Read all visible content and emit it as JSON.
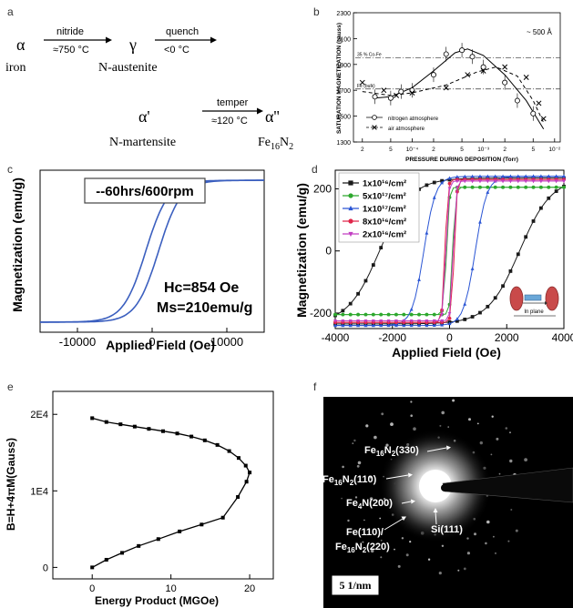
{
  "panels": {
    "a": {
      "label": "a",
      "alpha_iron": "α",
      "iron": "iron",
      "step1_top": "nitride",
      "step1_bottom": "≈750 °C",
      "gamma": "γ",
      "n_austenite": "N-austenite",
      "step2_top": "quench",
      "step2_bottom": "<0 °C",
      "alpha_prime": "α'",
      "n_martensite": "N-martensite",
      "step3_top": "temper",
      "step3_bottom": "≈120 °C",
      "alpha_dprime": "α''",
      "fe16n2": "Fe16N2"
    },
    "b": {
      "label": "b",
      "note": "~ 500 Å",
      "ref35": "35 % Co-Fe",
      "refbulk": "Fe (bulk)",
      "legend": [
        "nitrogen atmosphere",
        "air atmosphere"
      ]
    },
    "c": {
      "label": "c",
      "box_text": "--60hrs/600rpm",
      "hc": "Hc=854 Oe",
      "ms": "Ms=210emu/g"
    },
    "d": {
      "label": "d",
      "inset_text": "In plane"
    },
    "e": {
      "label": "e"
    },
    "f": {
      "label": "f",
      "labels": [
        "Fe16N2(330)",
        "Fe16N2(110)",
        "Fe4N(200)",
        "Si(111)",
        "Fe(110)/",
        "Fe16N2(220)"
      ],
      "scale": "5 1/nm"
    }
  },
  "chart_data": [
    {
      "id": "b",
      "type": "line",
      "xlabel": "PRESSURE DURING DEPOSITION (Torr)",
      "ylabel": "SATURATION MAGNETIZATION (gauss)",
      "xscale": "log",
      "xlim": [
        1.5e-05,
        0.012
      ],
      "ylim": [
        1300,
        2300
      ],
      "yticks": [
        1300,
        1500,
        1700,
        1900,
        2100,
        2300
      ],
      "xtick_labels": [
        "2",
        "5",
        "10⁻⁴",
        "2",
        "5",
        "10⁻³",
        "2",
        "5",
        "10⁻²"
      ],
      "xtick_values": [
        2e-05,
        5e-05,
        0.0001,
        0.0002,
        0.0005,
        0.001,
        0.002,
        0.005,
        0.01
      ],
      "ref_lines": [
        {
          "name": "35 % Co-Fe",
          "y": 1950,
          "style": "dash-dot"
        },
        {
          "name": "Fe (bulk)",
          "y": 1710,
          "style": "dash-dot"
        }
      ],
      "series": [
        {
          "name": "nitrogen atmosphere",
          "marker": "circle",
          "x": [
            3e-05,
            5e-05,
            7e-05,
            0.0001,
            0.0002,
            0.0003,
            0.0005,
            0.0007,
            0.001,
            0.002,
            0.003,
            0.005
          ],
          "y": [
            1650,
            1640,
            1690,
            1700,
            1820,
            1980,
            2010,
            1960,
            1880,
            1760,
            1620,
            1520
          ],
          "fit_x": [
            3e-05,
            5e-05,
            0.0001,
            0.0002,
            0.0004,
            0.0006,
            0.001,
            0.002,
            0.004,
            0.007
          ],
          "fit_y": [
            1640,
            1650,
            1720,
            1850,
            1990,
            2020,
            1970,
            1820,
            1620,
            1400
          ]
        },
        {
          "name": "air atmosphere",
          "marker": "x",
          "x": [
            2e-05,
            4e-05,
            6e-05,
            0.0001,
            0.0003,
            0.0006,
            0.001,
            0.002,
            0.004,
            0.006,
            0.007
          ],
          "y": [
            1760,
            1700,
            1660,
            1680,
            1720,
            1820,
            1850,
            1880,
            1800,
            1600,
            1480
          ],
          "fit_x": [
            2e-05,
            5e-05,
            0.0001,
            0.0003,
            0.0008,
            0.0015,
            0.003,
            0.005,
            0.007
          ],
          "fit_y": [
            1690,
            1660,
            1680,
            1740,
            1840,
            1880,
            1810,
            1620,
            1450
          ]
        }
      ]
    },
    {
      "id": "c",
      "type": "line",
      "xlabel": "Applied Field (Oe)",
      "ylabel": "Magnetization (emu/g)",
      "xlim": [
        -15000,
        15000
      ],
      "ylim": [
        -240,
        240
      ],
      "xticks": [
        -10000,
        0,
        10000
      ],
      "hc": 854,
      "ms": 210
    },
    {
      "id": "d",
      "type": "line",
      "xlabel": "Applied Field (Oe)",
      "ylabel": "Magnetization (emu/g)",
      "xlim": [
        -4000,
        4000
      ],
      "ylim": [
        -250,
        260
      ],
      "xticks": [
        -4000,
        -2000,
        0,
        2000,
        4000
      ],
      "yticks": [
        -200,
        0,
        200
      ],
      "series": [
        {
          "name": "1x10¹⁶/cm²",
          "color": "#1a1a1a",
          "marker": "square",
          "hc": 2450,
          "ms": 235,
          "r": 0.8
        },
        {
          "name": "5x10¹⁷/cm²",
          "color": "#2ea82e",
          "marker": "circle",
          "hc": 110,
          "ms": 205,
          "r": 0.25
        },
        {
          "name": "1x10¹⁷/cm²",
          "color": "#2a55d4",
          "marker": "triangle",
          "hc": 900,
          "ms": 240,
          "r": 0.8
        },
        {
          "name": "8x10¹⁶/cm²",
          "color": "#e0264a",
          "marker": "circle",
          "hc": 160,
          "ms": 230,
          "r": 0.3
        },
        {
          "name": "2x10¹⁶/cm²",
          "color": "#c23fc2",
          "marker": "triangle-down",
          "hc": 130,
          "ms": 225,
          "r": 0.3
        }
      ]
    },
    {
      "id": "e",
      "type": "line",
      "xlabel": "Energy Product (MGOe)",
      "ylabel": "B=H+4πM(Gauss)",
      "xlim": [
        -5,
        23
      ],
      "ylim": [
        -1500,
        23000
      ],
      "xticks": [
        0,
        10,
        20
      ],
      "ytick_labels": [
        "0",
        "1E4",
        "2E4"
      ],
      "ytick_values": [
        0,
        10000,
        20000
      ],
      "series": [
        {
          "name": "BH curve",
          "marker": "square",
          "x": [
            0,
            1.8,
            3.6,
            5.4,
            7.2,
            9.0,
            10.8,
            12.6,
            14.3,
            15.9,
            17.4,
            18.6,
            19.5,
            20.0,
            19.6,
            18.5,
            16.6,
            13.9,
            11.1,
            8.4,
            5.9,
            3.8,
            1.8,
            0
          ],
          "y": [
            19500,
            19000,
            18700,
            18400,
            18100,
            17800,
            17500,
            17100,
            16600,
            16000,
            15200,
            14300,
            13300,
            12400,
            11200,
            9200,
            6500,
            5600,
            4700,
            3700,
            2800,
            1900,
            1000,
            0
          ]
        }
      ]
    }
  ]
}
